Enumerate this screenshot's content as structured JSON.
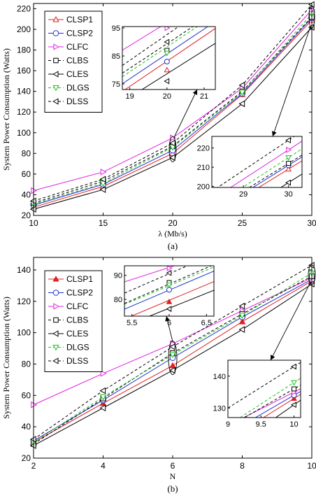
{
  "chart_data": [
    {
      "type": "line",
      "caption": "(a)",
      "xlabel": "λ (Mb/s)",
      "ylabel": "System Power Consumption (Watts)",
      "x": [
        10,
        15,
        20,
        25,
        30
      ],
      "xticks": [
        10,
        15,
        20,
        25,
        30
      ],
      "yticks": [
        20,
        40,
        60,
        80,
        100,
        120,
        140,
        160,
        180,
        200,
        220
      ],
      "xlim": [
        10,
        30
      ],
      "ylim": [
        20,
        225
      ],
      "grid": false,
      "legend_position": "top-left",
      "series": [
        {
          "name": "CLSP1",
          "color": "#e02020",
          "dash": "solid",
          "marker": "triangle-up",
          "values": [
            28,
            48,
            80,
            137,
            209
          ]
        },
        {
          "name": "CLSP2",
          "color": "#2030d0",
          "dash": "solid",
          "marker": "circle",
          "values": [
            30,
            50,
            83,
            138,
            211
          ]
        },
        {
          "name": "CLFC",
          "color": "#e020e0",
          "dash": "solid",
          "marker": "triangle-right",
          "values": [
            44,
            62,
            95,
            143,
            219
          ]
        },
        {
          "name": "CLBS",
          "color": "#000000",
          "dash": "dashed",
          "marker": "square",
          "values": [
            32,
            53,
            87,
            140,
            212
          ]
        },
        {
          "name": "CLES",
          "color": "#000000",
          "dash": "solid",
          "marker": "triangle-left",
          "values": [
            26,
            45,
            76,
            128,
            202
          ]
        },
        {
          "name": "DLGS",
          "color": "#20c020",
          "dash": "dashed",
          "marker": "triangle-down",
          "values": [
            31,
            51,
            86,
            139,
            215
          ]
        },
        {
          "name": "DLSS",
          "color": "#000000",
          "dash": "dashed",
          "marker": "triangle-left",
          "values": [
            34,
            55,
            90,
            146,
            224
          ]
        }
      ],
      "insets": [
        {
          "xlim": [
            18.8,
            21.3
          ],
          "ylim": [
            73,
            95.5
          ],
          "xticks": [
            19,
            20,
            21
          ],
          "yticks": [
            75,
            85,
            95
          ]
        },
        {
          "xlim": [
            28.3,
            30.3
          ],
          "ylim": [
            199.5,
            226
          ],
          "xticks": [
            29,
            30
          ],
          "yticks": [
            200,
            210,
            220
          ]
        }
      ]
    },
    {
      "type": "line",
      "caption": "(b)",
      "xlabel": "N",
      "ylabel": "System Power Consumption (Watts)",
      "x": [
        2,
        4,
        6,
        8,
        10
      ],
      "xticks": [
        2,
        4,
        6,
        8,
        10
      ],
      "yticks": [
        20,
        40,
        60,
        80,
        100,
        120,
        140
      ],
      "xlim": [
        2,
        10
      ],
      "ylim": [
        20,
        148
      ],
      "grid": false,
      "legend_position": "top-left",
      "series": [
        {
          "name": "CLSP1",
          "color": "#e02020",
          "dash": "solid",
          "marker": "triangle-up-filled",
          "values": [
            30,
            55,
            79,
            107,
            133
          ]
        },
        {
          "name": "CLSP2",
          "color": "#2030d0",
          "dash": "solid",
          "marker": "circle",
          "values": [
            31,
            57,
            84,
            110,
            134
          ]
        },
        {
          "name": "CLFC",
          "color": "#e020e0",
          "dash": "solid",
          "marker": "triangle-right",
          "values": [
            54,
            74,
            93,
            114,
            135
          ]
        },
        {
          "name": "CLBS",
          "color": "#000000",
          "dash": "dashed",
          "marker": "square",
          "values": [
            29,
            58,
            87,
            112,
            136
          ]
        },
        {
          "name": "CLES",
          "color": "#000000",
          "dash": "solid",
          "marker": "triangle-left",
          "values": [
            28,
            52,
            76,
            102,
            131
          ]
        },
        {
          "name": "DLGS",
          "color": "#20c020",
          "dash": "dashed",
          "marker": "triangle-down",
          "values": [
            30,
            59,
            86,
            111,
            138
          ]
        },
        {
          "name": "DLSS",
          "color": "#000000",
          "dash": "dashed",
          "marker": "triangle-left",
          "values": [
            32,
            63,
            91,
            117,
            143
          ]
        }
      ],
      "insets": [
        {
          "xlim": [
            5.4,
            6.6
          ],
          "ylim": [
            73,
            94
          ],
          "xticks": [
            5.5,
            6,
            6.5
          ],
          "yticks": [
            80,
            90
          ]
        },
        {
          "xlim": [
            9,
            10.1
          ],
          "ylim": [
            127,
            145
          ],
          "xticks": [
            9,
            9.5,
            10
          ],
          "yticks": [
            130,
            140
          ]
        }
      ]
    }
  ]
}
